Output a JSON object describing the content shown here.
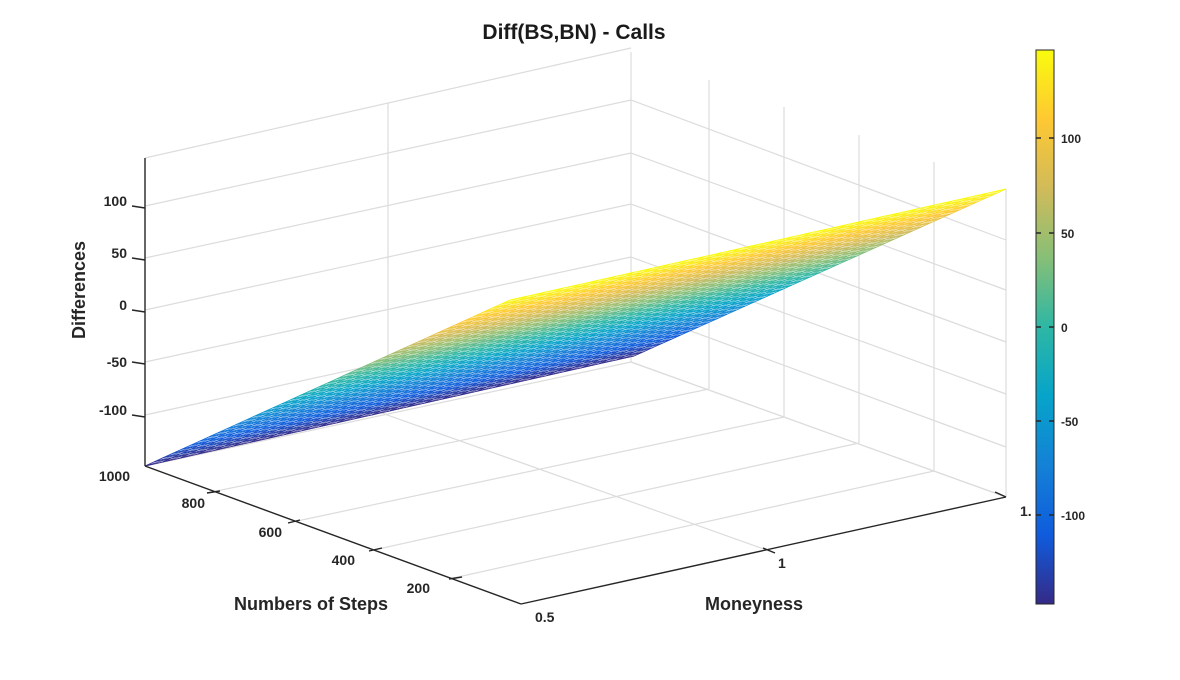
{
  "chart_data": {
    "type": "surface",
    "title": "Diff(BS,BN) - Calls",
    "xlabel": "Moneyness",
    "ylabel": "Numbers of Steps",
    "zlabel": "Differences",
    "x_ticks": [
      "0.5",
      "1",
      "1."
    ],
    "y_ticks": [
      "200",
      "400",
      "600",
      "800",
      "1000"
    ],
    "z_ticks": [
      "-100",
      "-50",
      "0",
      "50",
      "100"
    ],
    "xlim": [
      0.5,
      1.5
    ],
    "ylim": [
      0,
      1000
    ],
    "zlim": [
      -150,
      150
    ],
    "moneyness_range": [
      0.5,
      1.5
    ],
    "steps_range": [
      1,
      1000
    ],
    "corner_values": [
      {
        "moneyness": 0.5,
        "steps": 1000,
        "difference": -150
      },
      {
        "moneyness": 0.5,
        "steps": 1,
        "difference": -150
      },
      {
        "moneyness": 1.5,
        "steps": 1000,
        "difference": 145
      },
      {
        "moneyness": 1.5,
        "steps": 1,
        "difference": 145
      }
    ],
    "colorbar": {
      "ticks": [
        "-100",
        "-50",
        "0",
        "50",
        "100"
      ],
      "range": [
        -150,
        145
      ],
      "colormap": "parula"
    },
    "grid": true
  }
}
